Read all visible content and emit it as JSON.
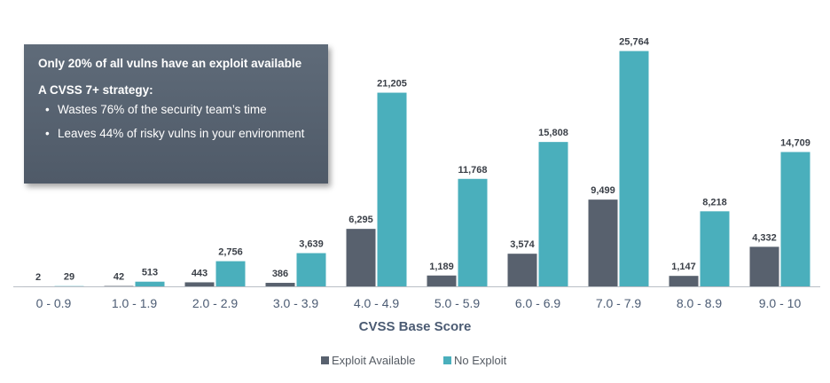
{
  "callout": {
    "headline": "Only 20% of all vulns have an exploit available",
    "subheading": "A CVSS 7+ strategy:",
    "bullets": [
      "Wastes 76% of the security team’s time",
      "Leaves 44% of risky vulns in your environment"
    ]
  },
  "colors": {
    "exploit": "#58616e",
    "no_exploit": "#4aafbc",
    "axis_text": "#4b5b73",
    "label_text": "#3a3f47"
  },
  "chart_data": {
    "type": "bar",
    "title": "",
    "xlabel": "CVSS Base Score",
    "ylabel": "",
    "ylim": [
      0,
      26500
    ],
    "grid": false,
    "legend_position": "bottom",
    "categories": [
      "0 - 0.9",
      "1.0 - 1.9",
      "2.0 - 2.9",
      "3.0 - 3.9",
      "4.0 - 4.9",
      "5.0 - 5.9",
      "6.0 - 6.9",
      "7.0 - 7.9",
      "8.0 - 8.9",
      "9.0 - 10"
    ],
    "series": [
      {
        "name": "Exploit Available",
        "color": "#58616e",
        "values": [
          2,
          42,
          443,
          386,
          6295,
          1189,
          3574,
          9499,
          1147,
          4332
        ],
        "labels": [
          "2",
          "42",
          "443",
          "386",
          "6,295",
          "1,189",
          "3,574",
          "9,499",
          "1,147",
          "4,332"
        ]
      },
      {
        "name": "No Exploit",
        "color": "#4aafbc",
        "values": [
          29,
          513,
          2756,
          3639,
          21205,
          11768,
          15808,
          25764,
          8218,
          14709
        ],
        "labels": [
          "29",
          "513",
          "2,756",
          "3,639",
          "21,205",
          "11,768",
          "15,808",
          "25,764",
          "8,218",
          "14,709"
        ]
      }
    ]
  }
}
